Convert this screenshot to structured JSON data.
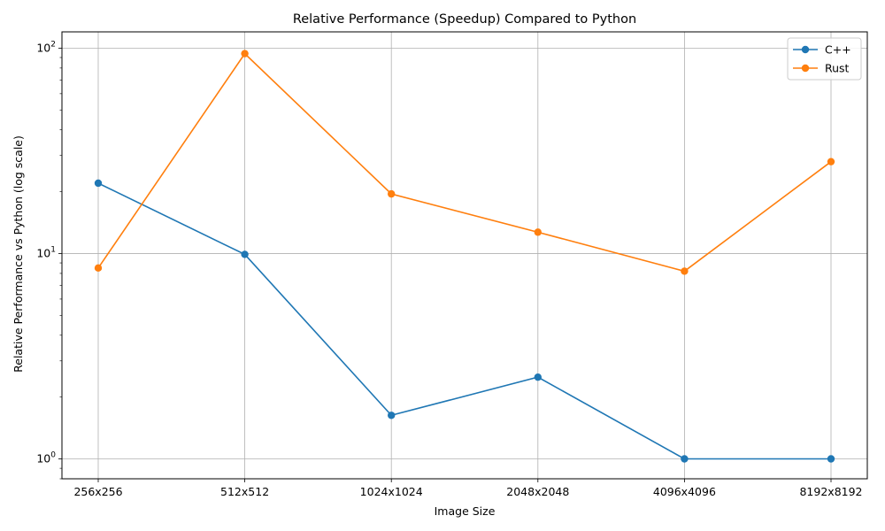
{
  "chart_data": {
    "type": "line",
    "title": "Relative Performance (Speedup) Compared to Python",
    "xlabel": "Image Size",
    "ylabel": "Relative Performance vs Python (log scale)",
    "yscale": "log",
    "ylim": [
      0.8,
      120
    ],
    "grid": true,
    "legend_position": "top-right",
    "categories": [
      "256x256",
      "512x512",
      "1024x1024",
      "2048x2048",
      "4096x4096",
      "8192x8192"
    ],
    "y_ticks": [
      {
        "value": 1,
        "base": "10",
        "exp": "0"
      },
      {
        "value": 10,
        "base": "10",
        "exp": "1"
      },
      {
        "value": 100,
        "base": "10",
        "exp": "2"
      }
    ],
    "series": [
      {
        "name": "C++",
        "color": "#1f77b4",
        "values": [
          22.0,
          9.9,
          1.63,
          2.5,
          1.0,
          1.0
        ]
      },
      {
        "name": "Rust",
        "color": "#ff7f0e",
        "values": [
          8.5,
          94.0,
          19.5,
          12.7,
          8.2,
          28.0
        ]
      }
    ]
  }
}
